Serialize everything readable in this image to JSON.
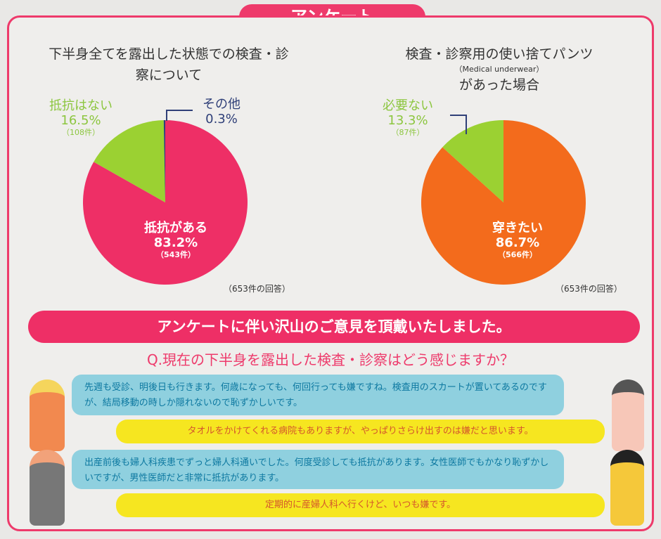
{
  "header": {
    "title": "アンケート"
  },
  "chart_data": [
    {
      "type": "pie",
      "title": "下半身全てを露出した状態での検査・診察について",
      "note": "（653件の回答）",
      "slices": [
        {
          "label": "抵抗がある",
          "percent": 83.2,
          "count_label": "（543件）",
          "color": "#ee2f66"
        },
        {
          "label": "抵抗はない",
          "percent": 16.5,
          "count_label": "（108件）",
          "color": "#9bd132"
        },
        {
          "label": "その他",
          "percent": 0.3,
          "color": "#2f3f78"
        }
      ]
    },
    {
      "type": "pie",
      "title": "検査・診察用の使い捨てパンツ",
      "subtitle": "（Medical underwear）",
      "title2": "があった場合",
      "note": "（653件の回答）",
      "slices": [
        {
          "label": "穿きたい",
          "percent": 86.7,
          "count_label": "（566件）",
          "color": "#f36b1c"
        },
        {
          "label": "必要ない",
          "percent": 13.3,
          "count_label": "（87件）",
          "color": "#9bd132"
        }
      ]
    }
  ],
  "banner": "アンケートに伴い沢山のご意見を頂戴いたしました。",
  "question": "Q.現在の下半身を露出した検査・診察はどう感じますか？",
  "comments": [
    "先週も受診、明後日も行きます。何歳になっても、何回行っても嫌ですね。検査用のスカートが置いてあるのですが、結局移動の時しか隠れないので恥ずかしいです。",
    "タオルをかけてくれる病院もありますが、やっぱりさらけ出すのは嫌だと思います。",
    "出産前後も婦人科疾患でずっと婦人科通いでした。何度受診しても抵抗があります。女性医師でもかなり恥ずかしいですが、男性医師だと非常に抵抗があります。",
    "定期的に産婦人科へ行くけど、いつも嫌です。"
  ]
}
